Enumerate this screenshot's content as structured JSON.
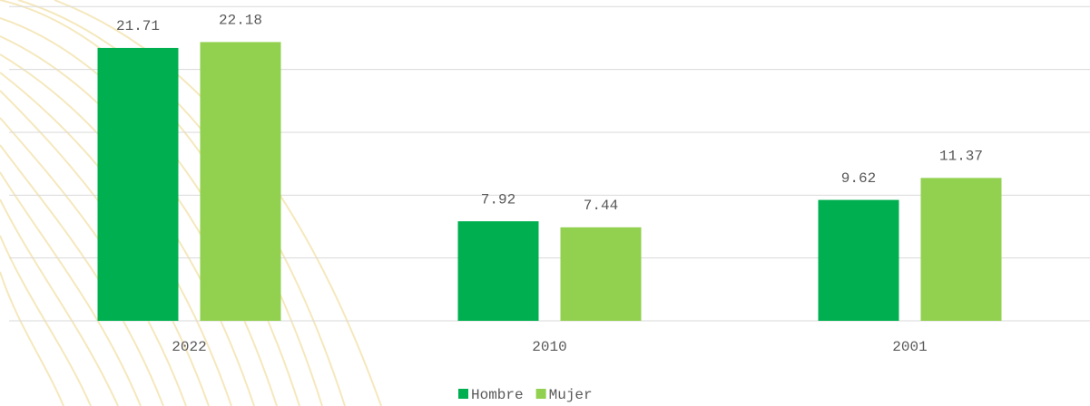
{
  "chart_data": {
    "type": "bar",
    "categories": [
      "2022",
      "2010",
      "2001"
    ],
    "series": [
      {
        "name": "Hombre",
        "color": "#00b050",
        "values": [
          21.71,
          7.92,
          9.62
        ]
      },
      {
        "name": "Mujer",
        "color": "#92d050",
        "values": [
          22.18,
          7.44,
          11.37
        ]
      }
    ],
    "ylim": [
      0,
      25
    ],
    "yticks": [
      0,
      5,
      10,
      15,
      20,
      25
    ],
    "grid": true,
    "legend": "bottom"
  }
}
